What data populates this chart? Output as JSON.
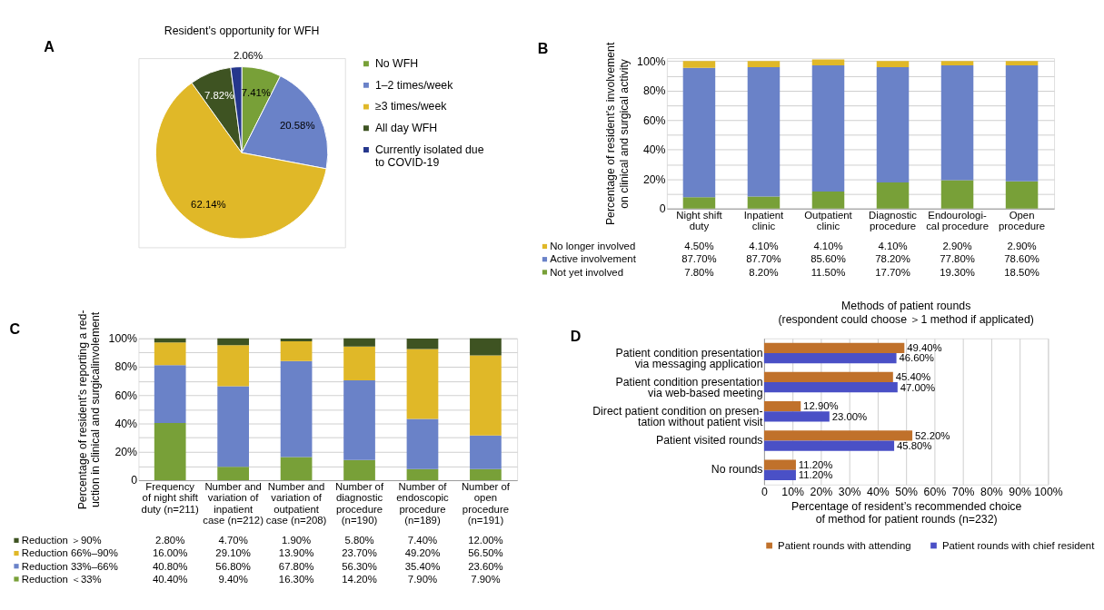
{
  "chart_data": [
    {
      "type": "pie",
      "title": "Resident’s opportunity for WFH",
      "annotations": [
        "A"
      ],
      "legend": "right",
      "categories": [
        "No WFH",
        "1–2 times/week",
        "≥3 times/week",
        "All day WFH",
        "Currently isolated due\nto COVID-19"
      ],
      "values": [
        7.41,
        20.58,
        62.14,
        7.82,
        2.06
      ],
      "value_labels": [
        "7.41%",
        "20.58%",
        "62.14%",
        "7.82%",
        "2.06%"
      ],
      "colors": [
        "#78a038",
        "#6a82c8",
        "#e0b828",
        "#3e5322",
        "#25378c"
      ]
    },
    {
      "type": "bar",
      "stacked": true,
      "annotations": [
        "B"
      ],
      "legend": "bottom",
      "grid": "y",
      "ylabel": "Percentage of resident’s involvement\non clinical and surgical activity",
      "categories": [
        "Night shift\nduty",
        "Inpatient\nclinic",
        "Outpatient\nclinic",
        "Diagnostic\nprocedure",
        "Endourologi-\ncal procedure",
        "Open\nprocedure"
      ],
      "ylim": [
        0,
        102
      ],
      "yticks": [
        0,
        {
          "value": 10,
          "label": null
        },
        {
          "value": 20,
          "label": "20%"
        },
        {
          "value": 30,
          "label": null
        },
        {
          "value": 40,
          "label": "40%"
        },
        {
          "value": 50,
          "label": null
        },
        {
          "value": 60,
          "label": "60%"
        },
        {
          "value": 70,
          "label": null
        },
        {
          "value": 80,
          "label": "80%"
        },
        {
          "value": 90,
          "label": null
        },
        {
          "value": 100,
          "label": "100%"
        }
      ],
      "series": [
        {
          "name": "Not yet involved",
          "color": "#78a038",
          "values": [
            7.8,
            8.2,
            11.5,
            17.7,
            19.3,
            18.5
          ],
          "value_labels": [
            "7.80%",
            "8.20%",
            "11.50%",
            "17.70%",
            "19.30%",
            "18.50%"
          ]
        },
        {
          "name": "Active involvement",
          "color": "#6a82c8",
          "values": [
            87.7,
            87.7,
            85.6,
            78.2,
            77.8,
            78.6
          ],
          "value_labels": [
            "87.70%",
            "87.70%",
            "85.60%",
            "78.20%",
            "77.80%",
            "78.60%"
          ]
        },
        {
          "name": "No longer involved",
          "color": "#e0b828",
          "values": [
            4.5,
            4.1,
            4.1,
            4.1,
            2.9,
            2.9
          ],
          "value_labels": [
            "4.50%",
            "4.10%",
            "4.10%",
            "4.10%",
            "2.90%",
            "2.90%"
          ]
        }
      ]
    },
    {
      "type": "bar",
      "stacked": true,
      "annotations": [
        "C"
      ],
      "legend": "bottom",
      "grid": "y",
      "ylabel": "Percentage of resident’s reporting a red-\nuction in clinical and surgicalinvolement",
      "categories": [
        "Frequency\nof night shift\nduty (n=211)",
        "Number and\nvariation of\ninpatient\ncase (n=212)",
        "Number and\nvariation of\noutpatient\ncase (n=208)",
        "Number of\ndiagnostic\nprocedure\n(n=190)",
        "Number of\nendoscopic\nprocedure\n(n=189)",
        "Number of\nopen\nprocedure\n(n=191)"
      ],
      "ylim": [
        0,
        100
      ],
      "yticks": [
        0,
        {
          "value": 10,
          "label": null
        },
        {
          "value": 20,
          "label": "20%"
        },
        {
          "value": 30,
          "label": null
        },
        {
          "value": 40,
          "label": "40%"
        },
        {
          "value": 50,
          "label": null
        },
        {
          "value": 60,
          "label": "60%"
        },
        {
          "value": 70,
          "label": null
        },
        {
          "value": 80,
          "label": "80%"
        },
        {
          "value": 90,
          "label": null
        },
        {
          "value": 100,
          "label": "100%"
        }
      ],
      "series": [
        {
          "name": "Reduction ＜33%",
          "color": "#78a038",
          "values": [
            40.4,
            9.4,
            16.3,
            14.2,
            7.9,
            7.9
          ],
          "value_labels": [
            "40.40%",
            "9.40%",
            "16.30%",
            "14.20%",
            "7.90%",
            "7.90%"
          ]
        },
        {
          "name": "Reduction 33%–66%",
          "color": "#6a82c8",
          "values": [
            40.8,
            56.8,
            67.8,
            56.3,
            35.4,
            23.6
          ],
          "value_labels": [
            "40.80%",
            "56.80%",
            "67.80%",
            "56.30%",
            "35.40%",
            "23.60%"
          ]
        },
        {
          "name": "Reduction 66%–90%",
          "color": "#e0b828",
          "values": [
            16.0,
            29.1,
            13.9,
            23.7,
            49.2,
            56.5
          ],
          "value_labels": [
            "16.00%",
            "29.10%",
            "13.90%",
            "23.70%",
            "49.20%",
            "56.50%"
          ]
        },
        {
          "name": "Reduction ＞90%",
          "color": "#3e5322",
          "values": [
            2.8,
            4.7,
            1.9,
            5.8,
            7.4,
            12.0
          ],
          "value_labels": [
            "2.80%",
            "4.70%",
            "1.90%",
            "5.80%",
            "7.40%",
            "12.00%"
          ]
        }
      ]
    },
    {
      "type": "bar",
      "orientation": "horizontal",
      "annotations": [
        "D"
      ],
      "legend": "bottom",
      "grid": "x",
      "title": "Methods of patient rounds",
      "subtitle": "(respondent could choose ＞1 method if applicated)",
      "xlabel": "Percentage of resident’s recommended choice\nof method for patient rounds (n=232)",
      "categories": [
        "Patient condition presentation\nvia messaging application",
        "Patient condition presentation\nvia web-based meeting",
        "Direct patient condition on presen-\ntation without patient visit",
        "Patient visited rounds",
        "No rounds"
      ],
      "xlim": [
        0,
        100
      ],
      "xticks": [
        0,
        {
          "value": 10,
          "label": "10%"
        },
        {
          "value": 20,
          "label": "20%"
        },
        {
          "value": 30,
          "label": "30%"
        },
        {
          "value": 40,
          "label": "40%"
        },
        {
          "value": 50,
          "label": "50%"
        },
        {
          "value": 60,
          "label": "60%"
        },
        {
          "value": 70,
          "label": "70%"
        },
        {
          "value": 80,
          "label": "80%"
        },
        {
          "value": 90,
          "label": "90%"
        },
        {
          "value": 100,
          "label": "100%"
        }
      ],
      "series": [
        {
          "name": "Patient rounds with attending",
          "color": "#c0712b",
          "values": [
            49.4,
            45.4,
            12.9,
            52.2,
            11.2
          ],
          "value_labels": [
            "49.40%",
            "45.40%",
            "12.90%",
            "52.20%",
            "11.20%"
          ]
        },
        {
          "name": "Patient rounds with chief resident",
          "color": "#4a50c6",
          "values": [
            46.6,
            47.0,
            23.0,
            45.8,
            11.2
          ],
          "value_labels": [
            "46.60%",
            "47.00%",
            "23.00%",
            "45.80%",
            "11.20%"
          ]
        }
      ]
    }
  ]
}
